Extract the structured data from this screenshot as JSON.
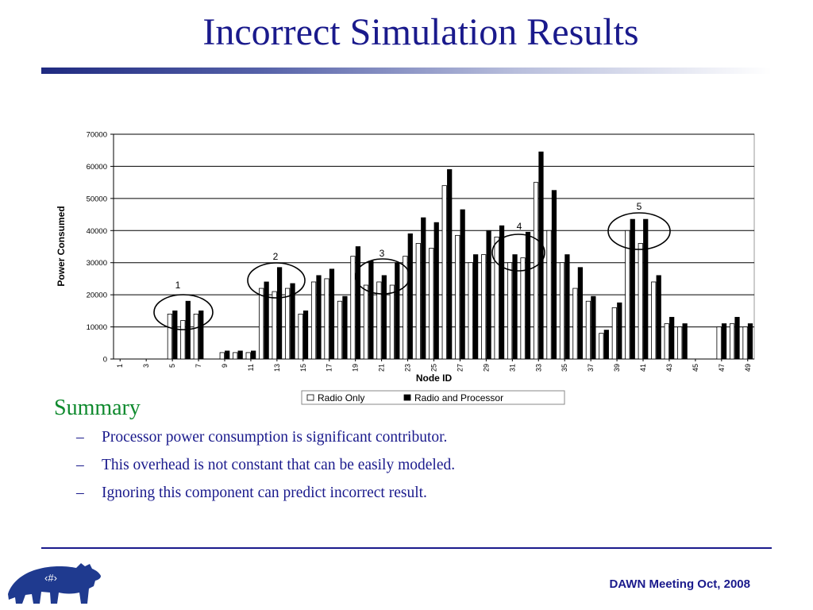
{
  "slide": {
    "title": "Incorrect Simulation Results",
    "summary_heading": "Summary",
    "bullets": [
      "Processor power consumption is significant contributor.",
      "This overhead is not constant that can be easily modeled.",
      "Ignoring this component can predict incorrect result."
    ],
    "bullet_marker": "–",
    "footer": "DAWN Meeting Oct, 2008",
    "slide_number_placeholder": "‹#›",
    "logo_icon": "bear-icon"
  },
  "colors": {
    "title": "#1a1a8c",
    "summary": "#0f8a2e",
    "bar_radio_only": "#ffffff",
    "bar_radio_processor": "#000000"
  },
  "chart_data": {
    "type": "bar",
    "xlabel": "Node ID",
    "ylabel": "Power Consumed",
    "ylim": [
      0,
      70000
    ],
    "yticks": [
      0,
      10000,
      20000,
      30000,
      40000,
      50000,
      60000,
      70000
    ],
    "categories": [
      1,
      2,
      3,
      4,
      5,
      6,
      7,
      8,
      9,
      10,
      11,
      12,
      13,
      14,
      15,
      16,
      17,
      18,
      19,
      20,
      21,
      22,
      23,
      24,
      25,
      26,
      27,
      28,
      29,
      30,
      31,
      32,
      33,
      34,
      35,
      36,
      37,
      38,
      39,
      40,
      41,
      42,
      43,
      44,
      45,
      46,
      47,
      48,
      49
    ],
    "xtick_labels": [
      "1",
      "3",
      "5",
      "7",
      "9",
      "11",
      "13",
      "15",
      "17",
      "19",
      "21",
      "23",
      "25",
      "27",
      "29",
      "31",
      "33",
      "35",
      "37",
      "39",
      "41",
      "43",
      "45",
      "47",
      "49"
    ],
    "grid": "horizontal",
    "legend": "bottom",
    "series": [
      {
        "name": "Radio Only",
        "values": [
          0,
          0,
          0,
          0,
          14000,
          12000,
          14000,
          0,
          2000,
          2000,
          2000,
          22000,
          21000,
          22000,
          14000,
          24000,
          25000,
          18000,
          32000,
          23000,
          24000,
          23000,
          32000,
          36000,
          34500,
          54000,
          38500,
          30000,
          32500,
          38000,
          30000,
          31500,
          55000,
          40000,
          30000,
          22000,
          18000,
          8000,
          16000,
          40000,
          36000,
          24000,
          11000,
          10000,
          0,
          0,
          10000,
          11000,
          10000
        ]
      },
      {
        "name": "Radio and Processor",
        "values": [
          0,
          0,
          0,
          0,
          15000,
          18000,
          15000,
          0,
          2500,
          2500,
          2500,
          24000,
          28500,
          23500,
          15000,
          26000,
          28000,
          19500,
          35000,
          30500,
          26000,
          30000,
          39000,
          44000,
          42500,
          59000,
          46500,
          32500,
          40000,
          41500,
          32500,
          39500,
          64500,
          52500,
          32500,
          28500,
          19500,
          9000,
          17500,
          43500,
          43500,
          26000,
          13000,
          11000,
          0,
          0,
          11000,
          13000,
          11000
        ]
      }
    ],
    "annotations": [
      "1",
      "2",
      "3",
      "4",
      "5"
    ]
  }
}
